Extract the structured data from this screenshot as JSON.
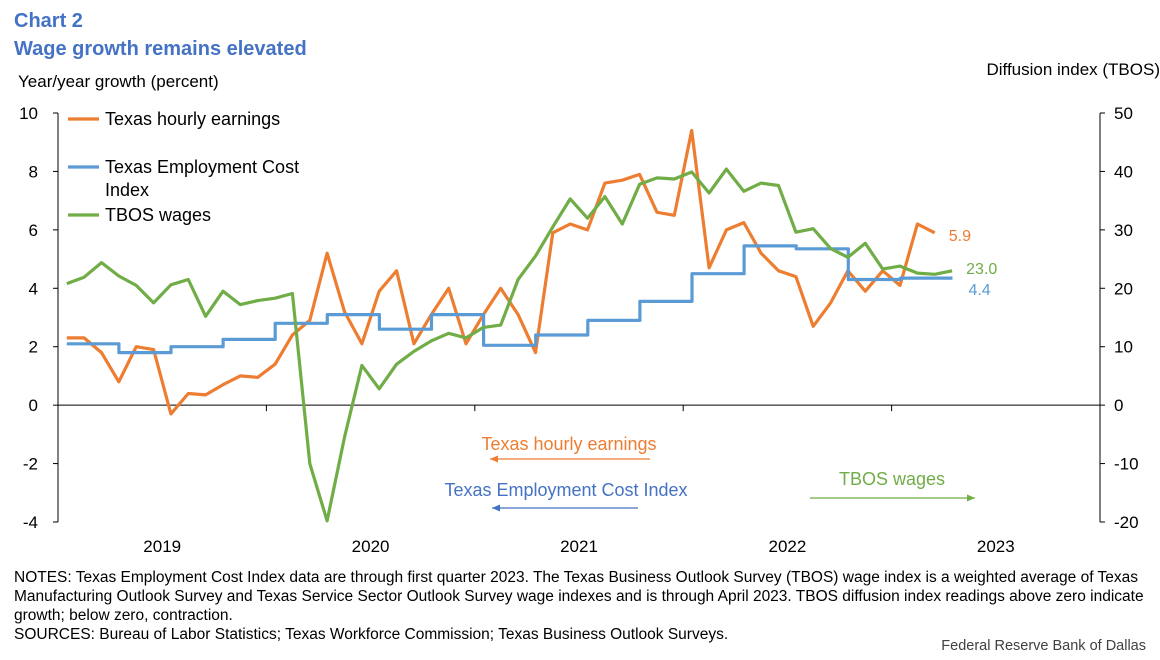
{
  "header": {
    "chart_label": "Chart 2",
    "title": "Wage growth remains elevated"
  },
  "chart_data": {
    "type": "line",
    "title": "Wage growth remains elevated",
    "ylabel": "Year/year growth (percent)",
    "y2label": "Diffusion index (TBOS)",
    "ylim": [
      -4,
      10
    ],
    "y2lim": [
      -20,
      50
    ],
    "yticks": [
      -4,
      -2,
      0,
      2,
      4,
      6,
      8,
      10
    ],
    "y2ticks": [
      -20,
      -10,
      0,
      10,
      20,
      30,
      40,
      50
    ],
    "x_start": 2018.5,
    "x_end": 2023.5,
    "xtick_labels": [
      "2019",
      "2020",
      "2021",
      "2022",
      "2023"
    ],
    "xtick_label_positions": [
      2019.0,
      2020.0,
      2021.0,
      2022.0,
      2023.0
    ],
    "year_boundaries": [
      2019.5,
      2020.5,
      2021.5,
      2022.5
    ],
    "legend": [
      "Texas hourly earnings",
      "Texas Employment Cost Index",
      "TBOS wages"
    ],
    "series": [
      {
        "name": "Texas hourly earnings",
        "axis": "left",
        "color": "#ed7d31",
        "x_start": 2018.542,
        "step": 0.0833,
        "values": [
          2.3,
          2.3,
          1.8,
          0.8,
          2.0,
          1.9,
          -0.3,
          0.4,
          0.35,
          0.7,
          1.0,
          0.95,
          1.4,
          2.4,
          2.9,
          5.2,
          3.2,
          2.1,
          3.9,
          4.6,
          2.1,
          3.1,
          4.0,
          2.1,
          3.1,
          4.0,
          3.1,
          1.8,
          5.9,
          6.2,
          6.0,
          7.6,
          7.7,
          7.9,
          6.6,
          6.5,
          9.4,
          4.7,
          6.0,
          6.25,
          5.2,
          4.6,
          4.4,
          2.7,
          3.5,
          4.6,
          3.9,
          4.6,
          4.1,
          6.2,
          5.9
        ]
      },
      {
        "name": "Texas Employment Cost Index",
        "axis": "left",
        "color": "#5b9bd5",
        "x": [
          2018.542,
          2018.792,
          2018.792,
          2019.042,
          2019.042,
          2019.292,
          2019.292,
          2019.542,
          2019.542,
          2019.792,
          2019.792,
          2020.042,
          2020.042,
          2020.292,
          2020.292,
          2020.542,
          2020.542,
          2020.792,
          2020.792,
          2021.042,
          2021.042,
          2021.292,
          2021.292,
          2021.542,
          2021.542,
          2021.792,
          2021.792,
          2022.042,
          2022.042,
          2022.292,
          2022.292,
          2022.542,
          2022.542,
          2022.792
        ],
        "values": [
          2.1,
          2.1,
          1.8,
          1.8,
          2.0,
          2.0,
          2.25,
          2.25,
          2.8,
          2.8,
          3.1,
          3.1,
          2.6,
          2.6,
          3.1,
          3.1,
          2.05,
          2.05,
          2.4,
          2.4,
          2.9,
          2.9,
          3.55,
          3.55,
          4.5,
          4.5,
          5.45,
          5.45,
          5.35,
          5.35,
          4.3,
          4.3,
          4.35,
          4.35
        ]
      },
      {
        "name": "TBOS wages",
        "axis": "right",
        "color": "#70ad47",
        "x_start": 2018.542,
        "step": 0.0833,
        "values": [
          20.8,
          21.9,
          24.4,
          22.1,
          20.5,
          17.5,
          20.6,
          21.5,
          15.2,
          19.5,
          17.2,
          17.9,
          18.3,
          19.1,
          -10.0,
          -19.8,
          -5.5,
          6.8,
          2.8,
          7.0,
          9.2,
          11.0,
          12.3,
          11.5,
          13.3,
          13.7,
          21.5,
          25.5,
          30.5,
          35.3,
          32.0,
          35.7,
          31.0,
          37.8,
          38.9,
          38.7,
          39.9,
          36.3,
          40.4,
          36.6,
          38.0,
          37.6,
          29.6,
          30.2,
          26.8,
          25.3,
          27.7,
          23.3,
          23.8,
          22.6,
          22.4,
          23.0
        ]
      }
    ],
    "end_labels": [
      {
        "series": "Texas hourly earnings",
        "text": "5.9"
      },
      {
        "series": "TBOS wages",
        "text": "23.0"
      },
      {
        "series": "Texas Employment Cost Index",
        "text": "4.4"
      }
    ],
    "annotations": [
      {
        "text": "Texas hourly earnings",
        "color": "#ed7d31",
        "arrow": "left"
      },
      {
        "text": "Texas Employment Cost Index",
        "color": "#4472c4",
        "arrow": "left"
      },
      {
        "text": "TBOS wages",
        "color": "#70ad47",
        "arrow": "right"
      }
    ]
  },
  "notes": {
    "text": "NOTES: Texas Employment Cost Index data are through first quarter 2023. The Texas Business Outlook Survey (TBOS) wage index is a weighted average of Texas Manufacturing Outlook Survey and Texas Service Sector Outlook Survey wage indexes and is through April 2023. TBOS diffusion index readings above zero indicate growth; below zero, contraction.\nSOURCES: Bureau of Labor Statistics; Texas Workforce Commission; Texas Business Outlook Surveys."
  },
  "credit": "Federal Reserve Bank of Dallas"
}
